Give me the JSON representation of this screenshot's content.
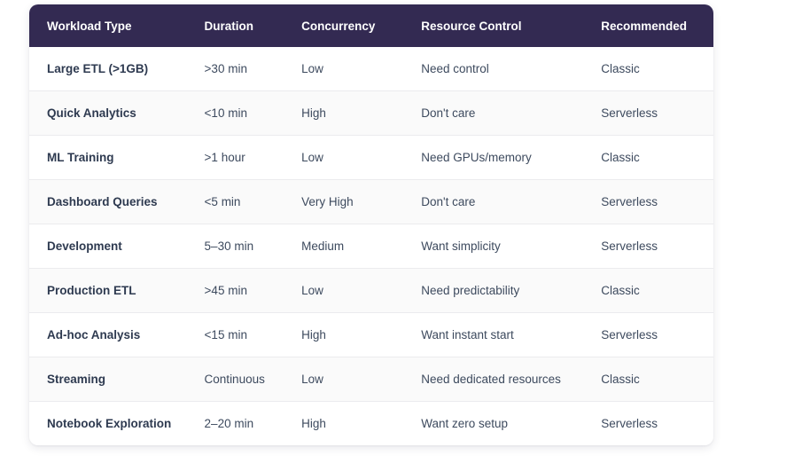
{
  "chart_data": {
    "type": "table",
    "columns": [
      "Workload Type",
      "Duration",
      "Concurrency",
      "Resource Control",
      "Recommended"
    ],
    "rows": [
      [
        "Large ETL (>1GB)",
        ">30 min",
        "Low",
        "Need control",
        "Classic"
      ],
      [
        "Quick Analytics",
        "<10 min",
        "High",
        "Don't care",
        "Serverless"
      ],
      [
        "ML Training",
        ">1 hour",
        "Low",
        "Need GPUs/memory",
        "Classic"
      ],
      [
        "Dashboard Queries",
        "<5 min",
        "Very High",
        "Don't care",
        "Serverless"
      ],
      [
        "Development",
        "5–30 min",
        "Medium",
        "Want simplicity",
        "Serverless"
      ],
      [
        "Production ETL",
        ">45 min",
        "Low",
        "Need predictability",
        "Classic"
      ],
      [
        "Ad-hoc Analysis",
        "<15 min",
        "High",
        "Want instant start",
        "Serverless"
      ],
      [
        "Streaming",
        "Continuous",
        "Low",
        "Need dedicated resources",
        "Classic"
      ],
      [
        "Notebook Exploration",
        "2–20 min",
        "High",
        "Want zero setup",
        "Serverless"
      ]
    ]
  },
  "colors": {
    "header_bg": "#332a52",
    "header_text": "#ffffff",
    "row_bg": "#ffffff",
    "row_alt_bg": "#fafafa",
    "divider": "#ebebee",
    "primary_text": "#2e3a50",
    "secondary_text": "#3d4a5e"
  }
}
